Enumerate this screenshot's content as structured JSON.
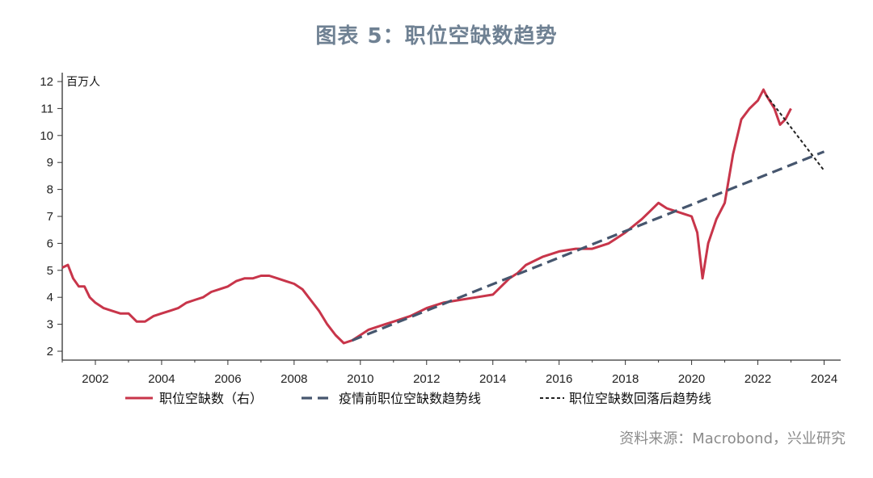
{
  "title": "图表 5：职位空缺数趋势",
  "source": "资料来源：Macrobond，兴业研究",
  "colors": {
    "series": "#c8354a",
    "trend_pre": "#46566e",
    "trend_post": "#222222",
    "title": "#6f8193"
  },
  "chart_data": {
    "type": "line",
    "unit_label": "百万人",
    "ylim": [
      2,
      12
    ],
    "xlim": [
      2001,
      2024
    ],
    "y_ticks": [
      2,
      3,
      4,
      5,
      6,
      7,
      8,
      9,
      10,
      11,
      12
    ],
    "x_ticks": [
      2002,
      2004,
      2006,
      2008,
      2010,
      2012,
      2014,
      2016,
      2018,
      2020,
      2022,
      2024
    ],
    "grid": false,
    "legend_position": "bottom",
    "series": [
      {
        "name": "职位空缺数（右）",
        "style": "solid",
        "x": [
          2001.0,
          2001.17,
          2001.33,
          2001.5,
          2001.67,
          2001.83,
          2002.0,
          2002.25,
          2002.5,
          2002.75,
          2003.0,
          2003.25,
          2003.5,
          2003.75,
          2004.0,
          2004.25,
          2004.5,
          2004.75,
          2005.0,
          2005.25,
          2005.5,
          2005.75,
          2006.0,
          2006.25,
          2006.5,
          2006.75,
          2007.0,
          2007.25,
          2007.5,
          2007.75,
          2008.0,
          2008.25,
          2008.5,
          2008.75,
          2009.0,
          2009.25,
          2009.5,
          2009.75,
          2010.0,
          2010.25,
          2010.5,
          2010.75,
          2011.0,
          2011.5,
          2012.0,
          2012.5,
          2013.0,
          2013.5,
          2014.0,
          2014.25,
          2014.5,
          2014.75,
          2015.0,
          2015.5,
          2016.0,
          2016.5,
          2017.0,
          2017.5,
          2018.0,
          2018.5,
          2018.75,
          2019.0,
          2019.25,
          2019.5,
          2019.75,
          2020.0,
          2020.17,
          2020.33,
          2020.5,
          2020.75,
          2021.0,
          2021.25,
          2021.5,
          2021.75,
          2022.0,
          2022.17,
          2022.25,
          2022.5,
          2022.67,
          2022.83,
          2023.0
        ],
        "y": [
          5.1,
          5.2,
          4.7,
          4.4,
          4.4,
          4.0,
          3.8,
          3.6,
          3.5,
          3.4,
          3.4,
          3.1,
          3.1,
          3.3,
          3.4,
          3.5,
          3.6,
          3.8,
          3.9,
          4.0,
          4.2,
          4.3,
          4.4,
          4.6,
          4.7,
          4.7,
          4.8,
          4.8,
          4.7,
          4.6,
          4.5,
          4.3,
          3.9,
          3.5,
          3.0,
          2.6,
          2.3,
          2.4,
          2.6,
          2.8,
          2.9,
          3.0,
          3.1,
          3.3,
          3.6,
          3.8,
          3.9,
          4.0,
          4.1,
          4.4,
          4.7,
          4.9,
          5.2,
          5.5,
          5.7,
          5.8,
          5.8,
          6.0,
          6.4,
          6.9,
          7.2,
          7.5,
          7.3,
          7.2,
          7.1,
          7.0,
          6.4,
          4.7,
          6.0,
          6.9,
          7.5,
          9.3,
          10.6,
          11.0,
          11.3,
          11.7,
          11.5,
          11.0,
          10.4,
          10.6,
          11.0
        ]
      },
      {
        "name": "疫情前职位空缺数趋势线",
        "style": "dashed",
        "x": [
          2009.75,
          2024.0
        ],
        "y": [
          2.4,
          9.4
        ]
      },
      {
        "name": "职位空缺数回落后趋势线",
        "style": "dotted",
        "x": [
          2022.25,
          2024.0
        ],
        "y": [
          11.5,
          8.7
        ]
      }
    ]
  }
}
